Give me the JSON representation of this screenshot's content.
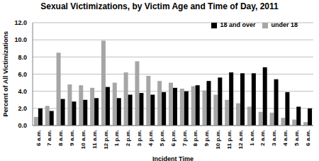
{
  "chart_data": {
    "type": "bar",
    "title": "Sexual Victimizations, by Victim Age and Time of Day, 2011",
    "x_label": "Incident Time",
    "y_label": "Percent of All Victimizations",
    "categories": [
      "6 a.m.",
      "7 a.m.",
      "8 a.m.",
      "9 a.m.",
      "10 a.m.",
      "11 a.m.",
      "12 p.m.",
      "1 p.m.",
      "2 p.m.",
      "3 p.m.",
      "4 p.m.",
      "5 p.m.",
      "6 p.m.",
      "7 p.m.",
      "8 p.m.",
      "9 p.m.",
      "10 p.m.",
      "11 p.m.",
      "12 a.m.",
      "1 a.m.",
      "2 a.m.",
      "3 a.m.",
      "4 a.m.",
      "5 a.m.",
      "6 a.m."
    ],
    "series": [
      {
        "name": "under 18",
        "color": "#a6a6a6",
        "values": [
          1.0,
          2.3,
          8.5,
          4.8,
          4.7,
          4.4,
          9.9,
          5.0,
          6.2,
          7.5,
          5.8,
          5.2,
          5.0,
          4.3,
          4.6,
          4.1,
          3.6,
          3.0,
          2.6,
          2.2,
          1.6,
          1.5,
          0.9,
          0.7,
          0.4
        ]
      },
      {
        "name": "18 and over",
        "color": "#000000",
        "values": [
          2.0,
          1.7,
          3.1,
          2.8,
          3.0,
          3.2,
          4.5,
          3.2,
          3.6,
          3.8,
          3.6,
          3.9,
          4.4,
          4.0,
          4.7,
          5.2,
          5.6,
          6.2,
          6.1,
          6.1,
          6.8,
          5.4,
          3.9,
          2.2,
          2.0
        ]
      }
    ],
    "ylim": [
      0,
      12
    ],
    "yticks": [
      {
        "value": 0,
        "label": "0.0"
      },
      {
        "value": 2,
        "label": "2.0"
      },
      {
        "value": 4,
        "label": "4.0"
      },
      {
        "value": 6,
        "label": "6.0"
      },
      {
        "value": 8,
        "label": "8.0"
      },
      {
        "value": 10,
        "label": "10.0"
      },
      {
        "value": 12,
        "label": "12.0"
      }
    ],
    "grid": true,
    "legend": "top-right"
  }
}
